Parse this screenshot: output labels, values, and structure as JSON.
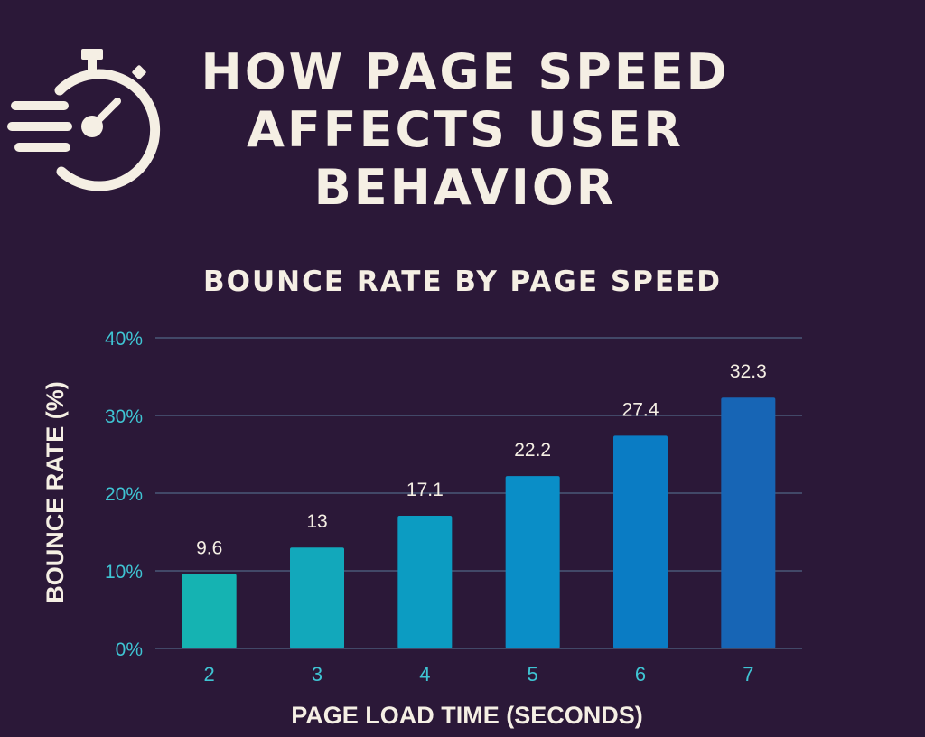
{
  "title": "HOW PAGE SPEED AFFECTS USER BEHAVIOR",
  "icon": "stopwatch-icon",
  "colors": {
    "background": "#2b1838",
    "text": "#f5efe4",
    "axis_ticks": "#3fc4d3",
    "gridline": "#4a5878"
  },
  "chart_data": {
    "type": "bar",
    "title": "BOUNCE RATE BY PAGE SPEED",
    "xlabel": "PAGE LOAD TIME (SECONDS)",
    "ylabel": "BOUNCE RATE (%)",
    "categories": [
      "2",
      "3",
      "4",
      "5",
      "6",
      "7"
    ],
    "values": [
      9.6,
      13,
      17.1,
      22.2,
      27.4,
      32.3
    ],
    "value_labels": [
      "9.6",
      "13",
      "17.1",
      "22.2",
      "27.4",
      "32.3"
    ],
    "bar_colors": [
      "#15b3b2",
      "#12a8bb",
      "#0c9cc2",
      "#0a8ec7",
      "#0a7cc4",
      "#1765b5"
    ],
    "ylim": [
      0,
      40
    ],
    "yticks": [
      0,
      10,
      20,
      30,
      40
    ],
    "ytick_labels": [
      "0%",
      "10%",
      "20%",
      "30%",
      "40%"
    ],
    "grid": true,
    "legend": "none"
  }
}
